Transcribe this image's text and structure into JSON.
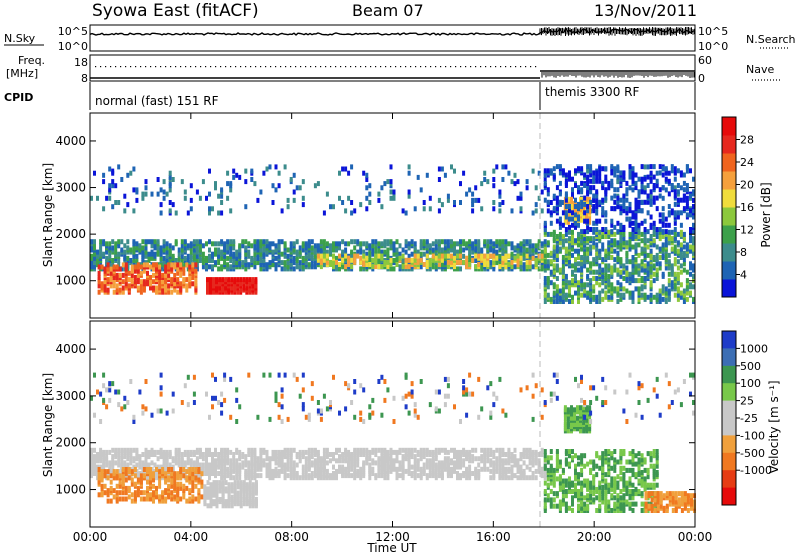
{
  "header": {
    "station": "Syowa East (fitACF)",
    "beam": "Beam 07",
    "date": "13/Nov/2011"
  },
  "summary_panels": {
    "nsky": {
      "label": "N.Sky",
      "tick_top": "10^5",
      "tick_bottom": "10^0",
      "right_tick_top": "10^5",
      "right_tick_bottom": "10^0",
      "right_label": "N.Search"
    },
    "freq": {
      "label_1": "Freq.",
      "label_2": "[MHz]",
      "tick_top": "18",
      "tick_bottom": "8",
      "right_tick_top": "60",
      "right_tick_bottom": "0",
      "right_label": "Nave"
    },
    "cpid": {
      "label": "CPID",
      "segments": [
        {
          "label": "normal (fast) 151 RF",
          "start_hour": 0,
          "end_hour": 18.0
        },
        {
          "label": "themis 3300 RF",
          "start_hour": 18.0,
          "end_hour": 24.0
        }
      ]
    }
  },
  "chart_data": [
    {
      "type": "heatmap",
      "name": "power",
      "ylabel": "Slant Range [km]",
      "xlabel": "",
      "xlim_hours": [
        0,
        24
      ],
      "ylim": [
        200,
        4600
      ],
      "yticks": [
        "1000",
        "2000",
        "3000",
        "4000"
      ],
      "colorbar": {
        "label": "Power [dB]",
        "ticks": [
          "4",
          "8",
          "12",
          "16",
          "20",
          "24",
          "28"
        ],
        "colors": [
          "#0a14d8",
          "#1e64b4",
          "#3c8c8c",
          "#3ca04a",
          "#8cc83c",
          "#f0dc3c",
          "#f5a03c",
          "#f0641e",
          "#e6281e",
          "#e60a0a"
        ]
      }
    },
    {
      "type": "heatmap",
      "name": "velocity",
      "ylabel": "Slant Range [km]",
      "xlabel": "Time UT",
      "xlim_hours": [
        0,
        24
      ],
      "ylim": [
        200,
        4600
      ],
      "yticks": [
        "1000",
        "2000",
        "3000",
        "4000"
      ],
      "xticks": [
        "00:00",
        "04:00",
        "08:00",
        "12:00",
        "16:00",
        "20:00",
        "00:00"
      ],
      "colorbar": {
        "label": "Velocity [m s⁻¹]",
        "ticks": [
          "1000",
          "500",
          "100",
          "25",
          "-25",
          "-100",
          "-500",
          "-1000"
        ],
        "colors": [
          "#1e3cc8",
          "#3c6eb4",
          "#3c9650",
          "#78c84a",
          "#c8c8c8",
          "#c8c8c8",
          "#f0a03c",
          "#f07820",
          "#e63c14",
          "#e60a0a"
        ]
      }
    }
  ]
}
